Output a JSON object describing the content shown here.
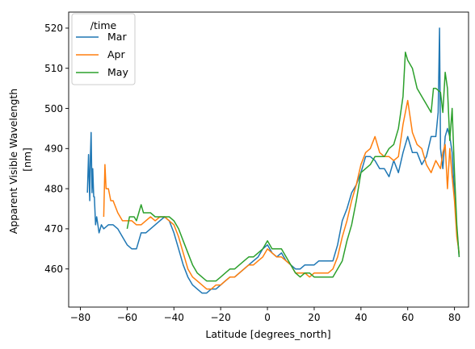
{
  "chart_data": {
    "type": "line",
    "title": "",
    "xlabel": "Latitude [degrees_north]",
    "ylabel_lines": [
      "Apparent Visible Wavelength",
      "[nm]"
    ],
    "xlim": [
      -85,
      86
    ],
    "ylim": [
      450.5,
      524
    ],
    "xticks": [
      -80,
      -60,
      -40,
      -20,
      0,
      20,
      40,
      60,
      80
    ],
    "xtick_labels": [
      "−80",
      "−60",
      "−40",
      "−20",
      "0",
      "20",
      "40",
      "60",
      "80"
    ],
    "yticks": [
      460,
      470,
      480,
      490,
      500,
      510,
      520
    ],
    "ytick_labels": [
      "460",
      "470",
      "480",
      "490",
      "500",
      "510",
      "520"
    ],
    "grid": false,
    "legend": {
      "title": "/time",
      "position": "top-left"
    },
    "series": [
      {
        "name": "Mar",
        "color": "#1f77b4",
        "points": [
          [
            -77,
            479
          ],
          [
            -76.5,
            488.5
          ],
          [
            -76,
            477
          ],
          [
            -75.7,
            488
          ],
          [
            -75.4,
            494
          ],
          [
            -75,
            479
          ],
          [
            -74.7,
            485
          ],
          [
            -74.3,
            478
          ],
          [
            -74,
            478
          ],
          [
            -73.5,
            471
          ],
          [
            -73,
            473
          ],
          [
            -72,
            469
          ],
          [
            -71,
            471
          ],
          [
            -70,
            470
          ],
          [
            -68,
            471
          ],
          [
            -66,
            471
          ],
          [
            -64,
            470
          ],
          [
            -62,
            468
          ],
          [
            -60,
            466
          ],
          [
            -58,
            465
          ],
          [
            -56,
            465
          ],
          [
            -54,
            469
          ],
          [
            -52,
            469
          ],
          [
            -50,
            470
          ],
          [
            -48,
            471
          ],
          [
            -46,
            472
          ],
          [
            -44,
            473
          ],
          [
            -42,
            472
          ],
          [
            -40,
            469
          ],
          [
            -38,
            465
          ],
          [
            -36,
            461
          ],
          [
            -34,
            458
          ],
          [
            -32,
            456
          ],
          [
            -30,
            455
          ],
          [
            -28,
            454
          ],
          [
            -26,
            454
          ],
          [
            -24,
            455
          ],
          [
            -22,
            455
          ],
          [
            -20,
            456
          ],
          [
            -18,
            457
          ],
          [
            -16,
            458
          ],
          [
            -14,
            458
          ],
          [
            -12,
            459
          ],
          [
            -10,
            460
          ],
          [
            -8,
            461
          ],
          [
            -6,
            462
          ],
          [
            -4,
            463
          ],
          [
            -2,
            465
          ],
          [
            0,
            466
          ],
          [
            2,
            464
          ],
          [
            4,
            463
          ],
          [
            6,
            464
          ],
          [
            8,
            462
          ],
          [
            10,
            461
          ],
          [
            12,
            460
          ],
          [
            14,
            460
          ],
          [
            16,
            461
          ],
          [
            18,
            461
          ],
          [
            20,
            461
          ],
          [
            22,
            462
          ],
          [
            24,
            462
          ],
          [
            26,
            462
          ],
          [
            28,
            462
          ],
          [
            30,
            466
          ],
          [
            32,
            472
          ],
          [
            34,
            475
          ],
          [
            36,
            479
          ],
          [
            38,
            481
          ],
          [
            40,
            484
          ],
          [
            42,
            488
          ],
          [
            44,
            488
          ],
          [
            46,
            487
          ],
          [
            48,
            485
          ],
          [
            50,
            485
          ],
          [
            52,
            483
          ],
          [
            54,
            487
          ],
          [
            56,
            484
          ],
          [
            58,
            489
          ],
          [
            60,
            493
          ],
          [
            62,
            489
          ],
          [
            64,
            489
          ],
          [
            66,
            486
          ],
          [
            68,
            488
          ],
          [
            70,
            493
          ],
          [
            72,
            493
          ],
          [
            73,
            499
          ],
          [
            73.6,
            520
          ],
          [
            74,
            490
          ],
          [
            75,
            485
          ],
          [
            76,
            493
          ],
          [
            77,
            495
          ],
          [
            78,
            493
          ],
          [
            79,
            489
          ],
          [
            80,
            478
          ],
          [
            81,
            470
          ],
          [
            82,
            463
          ]
        ]
      },
      {
        "name": "Apr",
        "color": "#ff7f0e",
        "points": [
          [
            -70,
            473
          ],
          [
            -69.5,
            486
          ],
          [
            -69,
            480
          ],
          [
            -68,
            480
          ],
          [
            -67,
            477
          ],
          [
            -66,
            477
          ],
          [
            -64,
            474
          ],
          [
            -62,
            472
          ],
          [
            -60,
            472
          ],
          [
            -58,
            472
          ],
          [
            -56,
            471
          ],
          [
            -54,
            471
          ],
          [
            -52,
            472
          ],
          [
            -50,
            473
          ],
          [
            -48,
            472
          ],
          [
            -46,
            473
          ],
          [
            -44,
            473
          ],
          [
            -42,
            472
          ],
          [
            -40,
            471
          ],
          [
            -38,
            468
          ],
          [
            -36,
            464
          ],
          [
            -34,
            460
          ],
          [
            -32,
            458
          ],
          [
            -30,
            457
          ],
          [
            -28,
            456
          ],
          [
            -26,
            455
          ],
          [
            -24,
            455
          ],
          [
            -22,
            456
          ],
          [
            -20,
            456
          ],
          [
            -18,
            457
          ],
          [
            -16,
            458
          ],
          [
            -14,
            458
          ],
          [
            -12,
            459
          ],
          [
            -10,
            460
          ],
          [
            -8,
            461
          ],
          [
            -6,
            461
          ],
          [
            -4,
            462
          ],
          [
            -2,
            463
          ],
          [
            0,
            465
          ],
          [
            2,
            464
          ],
          [
            4,
            463
          ],
          [
            6,
            463
          ],
          [
            8,
            462
          ],
          [
            10,
            461
          ],
          [
            12,
            459
          ],
          [
            14,
            459
          ],
          [
            16,
            459
          ],
          [
            18,
            458
          ],
          [
            20,
            459
          ],
          [
            22,
            459
          ],
          [
            24,
            459
          ],
          [
            26,
            459
          ],
          [
            28,
            460
          ],
          [
            30,
            463
          ],
          [
            32,
            468
          ],
          [
            34,
            472
          ],
          [
            36,
            477
          ],
          [
            38,
            481
          ],
          [
            40,
            486
          ],
          [
            42,
            489
          ],
          [
            44,
            490
          ],
          [
            46,
            493
          ],
          [
            48,
            489
          ],
          [
            50,
            488
          ],
          [
            52,
            488
          ],
          [
            54,
            487
          ],
          [
            56,
            488
          ],
          [
            58,
            496
          ],
          [
            60,
            502
          ],
          [
            62,
            494
          ],
          [
            64,
            491
          ],
          [
            66,
            490
          ],
          [
            68,
            486
          ],
          [
            70,
            484
          ],
          [
            72,
            487
          ],
          [
            74,
            485
          ],
          [
            75,
            489
          ],
          [
            76,
            491
          ],
          [
            77,
            480
          ],
          [
            78,
            490
          ],
          [
            79,
            483
          ],
          [
            80,
            477
          ],
          [
            81,
            468
          ],
          [
            82,
            464
          ]
        ]
      },
      {
        "name": "May",
        "color": "#2ca02c",
        "points": [
          [
            -60,
            470
          ],
          [
            -59,
            473
          ],
          [
            -58,
            473
          ],
          [
            -57,
            473
          ],
          [
            -56,
            472
          ],
          [
            -55,
            474
          ],
          [
            -54,
            476
          ],
          [
            -53,
            474
          ],
          [
            -52,
            474
          ],
          [
            -50,
            474
          ],
          [
            -48,
            473
          ],
          [
            -46,
            473
          ],
          [
            -44,
            473
          ],
          [
            -42,
            473
          ],
          [
            -40,
            472
          ],
          [
            -38,
            470
          ],
          [
            -36,
            467
          ],
          [
            -34,
            464
          ],
          [
            -32,
            461
          ],
          [
            -30,
            459
          ],
          [
            -28,
            458
          ],
          [
            -26,
            457
          ],
          [
            -24,
            457
          ],
          [
            -22,
            457
          ],
          [
            -20,
            458
          ],
          [
            -18,
            459
          ],
          [
            -16,
            460
          ],
          [
            -14,
            460
          ],
          [
            -12,
            461
          ],
          [
            -10,
            462
          ],
          [
            -8,
            463
          ],
          [
            -6,
            463
          ],
          [
            -4,
            464
          ],
          [
            -2,
            465
          ],
          [
            0,
            467
          ],
          [
            2,
            465
          ],
          [
            4,
            465
          ],
          [
            6,
            465
          ],
          [
            8,
            463
          ],
          [
            10,
            461
          ],
          [
            12,
            459
          ],
          [
            14,
            458
          ],
          [
            16,
            459
          ],
          [
            18,
            459
          ],
          [
            20,
            458
          ],
          [
            22,
            458
          ],
          [
            24,
            458
          ],
          [
            26,
            458
          ],
          [
            28,
            458
          ],
          [
            30,
            460
          ],
          [
            32,
            462
          ],
          [
            34,
            467
          ],
          [
            36,
            471
          ],
          [
            38,
            477
          ],
          [
            40,
            484
          ],
          [
            42,
            485
          ],
          [
            44,
            486
          ],
          [
            46,
            488
          ],
          [
            48,
            488
          ],
          [
            50,
            488
          ],
          [
            52,
            490
          ],
          [
            54,
            491
          ],
          [
            56,
            495
          ],
          [
            58,
            503
          ],
          [
            59,
            514
          ],
          [
            60,
            512
          ],
          [
            62,
            510
          ],
          [
            64,
            505
          ],
          [
            66,
            503
          ],
          [
            68,
            501
          ],
          [
            70,
            499
          ],
          [
            71,
            505
          ],
          [
            72,
            505
          ],
          [
            74,
            504
          ],
          [
            75,
            499
          ],
          [
            76,
            509
          ],
          [
            77,
            505
          ],
          [
            78,
            492
          ],
          [
            79,
            500
          ],
          [
            80,
            484
          ],
          [
            81,
            471
          ],
          [
            82,
            463
          ]
        ]
      }
    ]
  }
}
